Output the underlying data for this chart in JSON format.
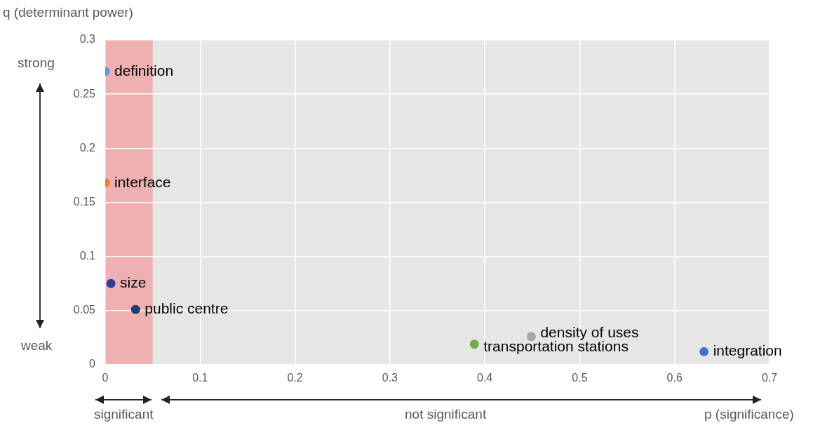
{
  "chart_data": {
    "type": "scatter",
    "xlabel": "p (significance)",
    "ylabel": "q (determinant power)",
    "series": [
      {
        "name": "definition",
        "color": "#5b9bd5",
        "x": [
          0.0
        ],
        "values": [
          0.271
        ]
      },
      {
        "name": "interface",
        "color": "#ed7d31",
        "x": [
          0.0
        ],
        "values": [
          0.168
        ]
      },
      {
        "name": "size",
        "color": "#2f3f9f",
        "x": [
          0.006
        ],
        "values": [
          0.075
        ]
      },
      {
        "name": "public centre",
        "color": "#1f3f6e",
        "x": [
          0.032
        ],
        "values": [
          0.051
        ]
      },
      {
        "name": "transportation stations",
        "color": "#70ad47",
        "x": [
          0.389
        ],
        "values": [
          0.019
        ]
      },
      {
        "name": "density of uses",
        "color": "#a5a5a5",
        "x": [
          0.449
        ],
        "values": [
          0.026
        ]
      },
      {
        "name": "integration",
        "color": "#4472c4",
        "x": [
          0.631
        ],
        "values": [
          0.012
        ]
      }
    ],
    "xlim": [
      0,
      0.7
    ],
    "xticks": [
      0,
      0.1,
      0.2,
      0.3,
      0.4,
      0.5,
      0.6,
      0.7
    ],
    "ylim": [
      0,
      0.3
    ],
    "yticks": [
      0,
      0.05,
      0.1,
      0.15,
      0.2,
      0.25,
      0.3
    ],
    "bands": [
      {
        "axis": "x",
        "from": 0,
        "to": 0.05,
        "color": "#eeb0b0"
      }
    ],
    "annotations": [
      "strong",
      "weak",
      "significant",
      "not significant"
    ],
    "grid": true,
    "legend": false,
    "marker": "circle"
  }
}
